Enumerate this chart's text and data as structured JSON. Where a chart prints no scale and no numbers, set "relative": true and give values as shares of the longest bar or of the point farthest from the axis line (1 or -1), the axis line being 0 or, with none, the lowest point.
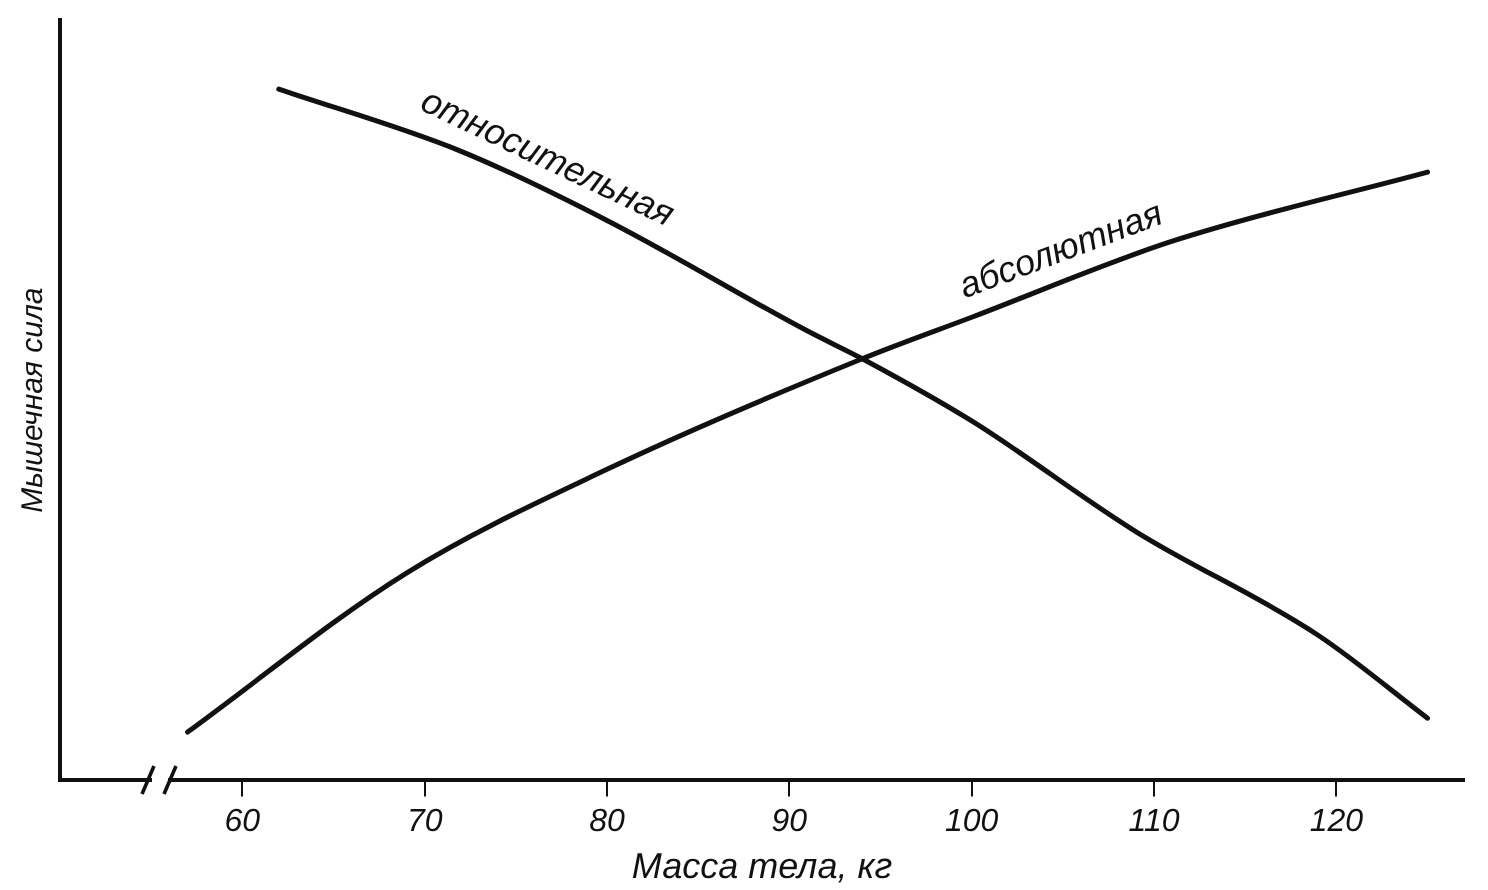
{
  "chart_data": {
    "type": "line",
    "xlabel": "Масса тела, кг",
    "ylabel": "Мышечная сила",
    "relative": true,
    "xlim": [
      50,
      127
    ],
    "xticks": [
      60,
      70,
      80,
      90,
      100,
      110,
      120
    ],
    "grid": false,
    "legend": false,
    "marker": "none",
    "line_style": "solid",
    "series": [
      {
        "name": "относительная",
        "color": "#111111",
        "x": [
          62,
          72,
          80,
          91,
          94,
          100,
          109,
          119,
          125
        ],
        "values": [
          1,
          0.91,
          0.81,
          0.65,
          0.61,
          0.52,
          0.36,
          0.21,
          0.09
        ]
      },
      {
        "name": "абсолютная",
        "color": "#111111",
        "x": [
          57,
          69,
          80,
          94,
          100,
          111,
          125
        ],
        "values": [
          0.07,
          0.3,
          0.45,
          0.61,
          0.67,
          0.78,
          0.88
        ]
      }
    ]
  }
}
